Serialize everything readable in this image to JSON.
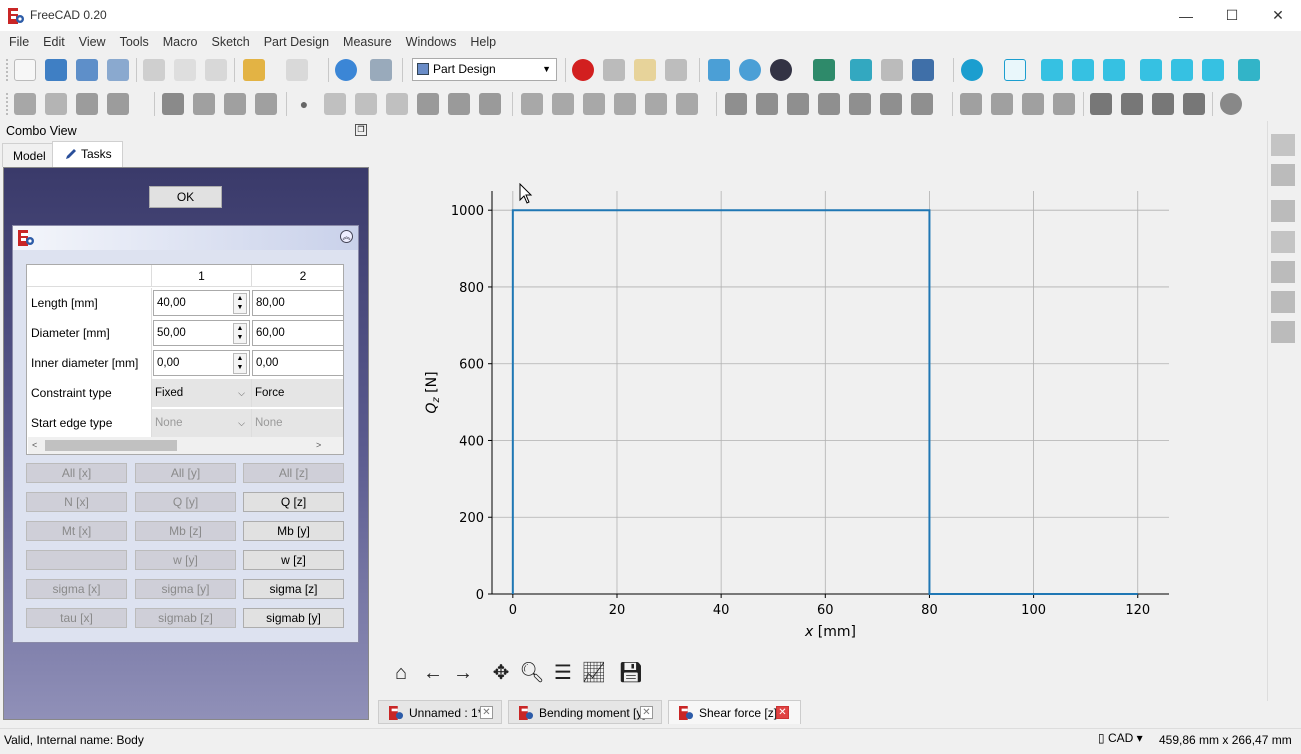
{
  "window": {
    "title": "FreeCAD 0.20",
    "controls": {
      "minimize": "—",
      "maximize": "☐",
      "close": "✕"
    }
  },
  "menu": [
    "File",
    "Edit",
    "View",
    "Tools",
    "Macro",
    "Sketch",
    "Part Design",
    "Measure",
    "Windows",
    "Help"
  ],
  "toolbar": {
    "workbench": "Part Design"
  },
  "combo_view": {
    "title": "Combo View",
    "tabs": {
      "model": "Model",
      "tasks": "Tasks"
    },
    "ok_label": "OK",
    "table": {
      "columns": [
        "1",
        "2"
      ],
      "rows": [
        {
          "label": "Length [mm]",
          "values": [
            "40,00",
            "80,00"
          ]
        },
        {
          "label": "Diameter [mm]",
          "values": [
            "50,00",
            "60,00"
          ]
        },
        {
          "label": "Inner diameter [mm]",
          "values": [
            "0,00",
            "0,00"
          ]
        },
        {
          "label": "Constraint type",
          "values": [
            "Fixed",
            "Force"
          ]
        },
        {
          "label": "Start edge type",
          "values": [
            "None",
            "None"
          ]
        }
      ]
    },
    "buttons": [
      [
        "All [x]",
        "All [y]",
        "All [z]"
      ],
      [
        "N [x]",
        "Q [y]",
        "Q [z]"
      ],
      [
        "Mt [x]",
        "Mb [z]",
        "Mb [y]"
      ],
      [
        "",
        "w [y]",
        "w [z]"
      ],
      [
        "sigma [x]",
        "sigma [y]",
        "sigma [z]"
      ],
      [
        "tau [x]",
        "sigmab [z]",
        "sigmab [y]"
      ]
    ]
  },
  "chart_data": {
    "type": "line",
    "xlabel_italic": "x",
    "xlabel_unit": " [mm]",
    "ylabel_italic": "Q",
    "ylabel_sub": "z",
    "ylabel_unit": " [N]",
    "xlim": [
      -4,
      126
    ],
    "ylim": [
      0,
      1050
    ],
    "xticks": [
      0,
      20,
      40,
      60,
      80,
      100,
      120
    ],
    "yticks": [
      0,
      200,
      400,
      600,
      800,
      1000
    ],
    "grid": true,
    "line_color": "#1f77b4",
    "x": [
      0,
      0,
      80,
      80,
      120
    ],
    "y": [
      0,
      1000,
      1000,
      0,
      0
    ]
  },
  "doc_tabs": [
    {
      "label": "Unnamed : 1*",
      "active": false
    },
    {
      "label": "Bending moment [y]",
      "active": false
    },
    {
      "label": "Shear force [z]",
      "active": true
    }
  ],
  "status": {
    "message": "Valid, Internal name: Body",
    "navigation": "CAD",
    "dimensions": "459,86 mm x 266,47 mm"
  },
  "colors": {
    "accent_red": "#e04343",
    "plot_line": "#1f77b4"
  }
}
